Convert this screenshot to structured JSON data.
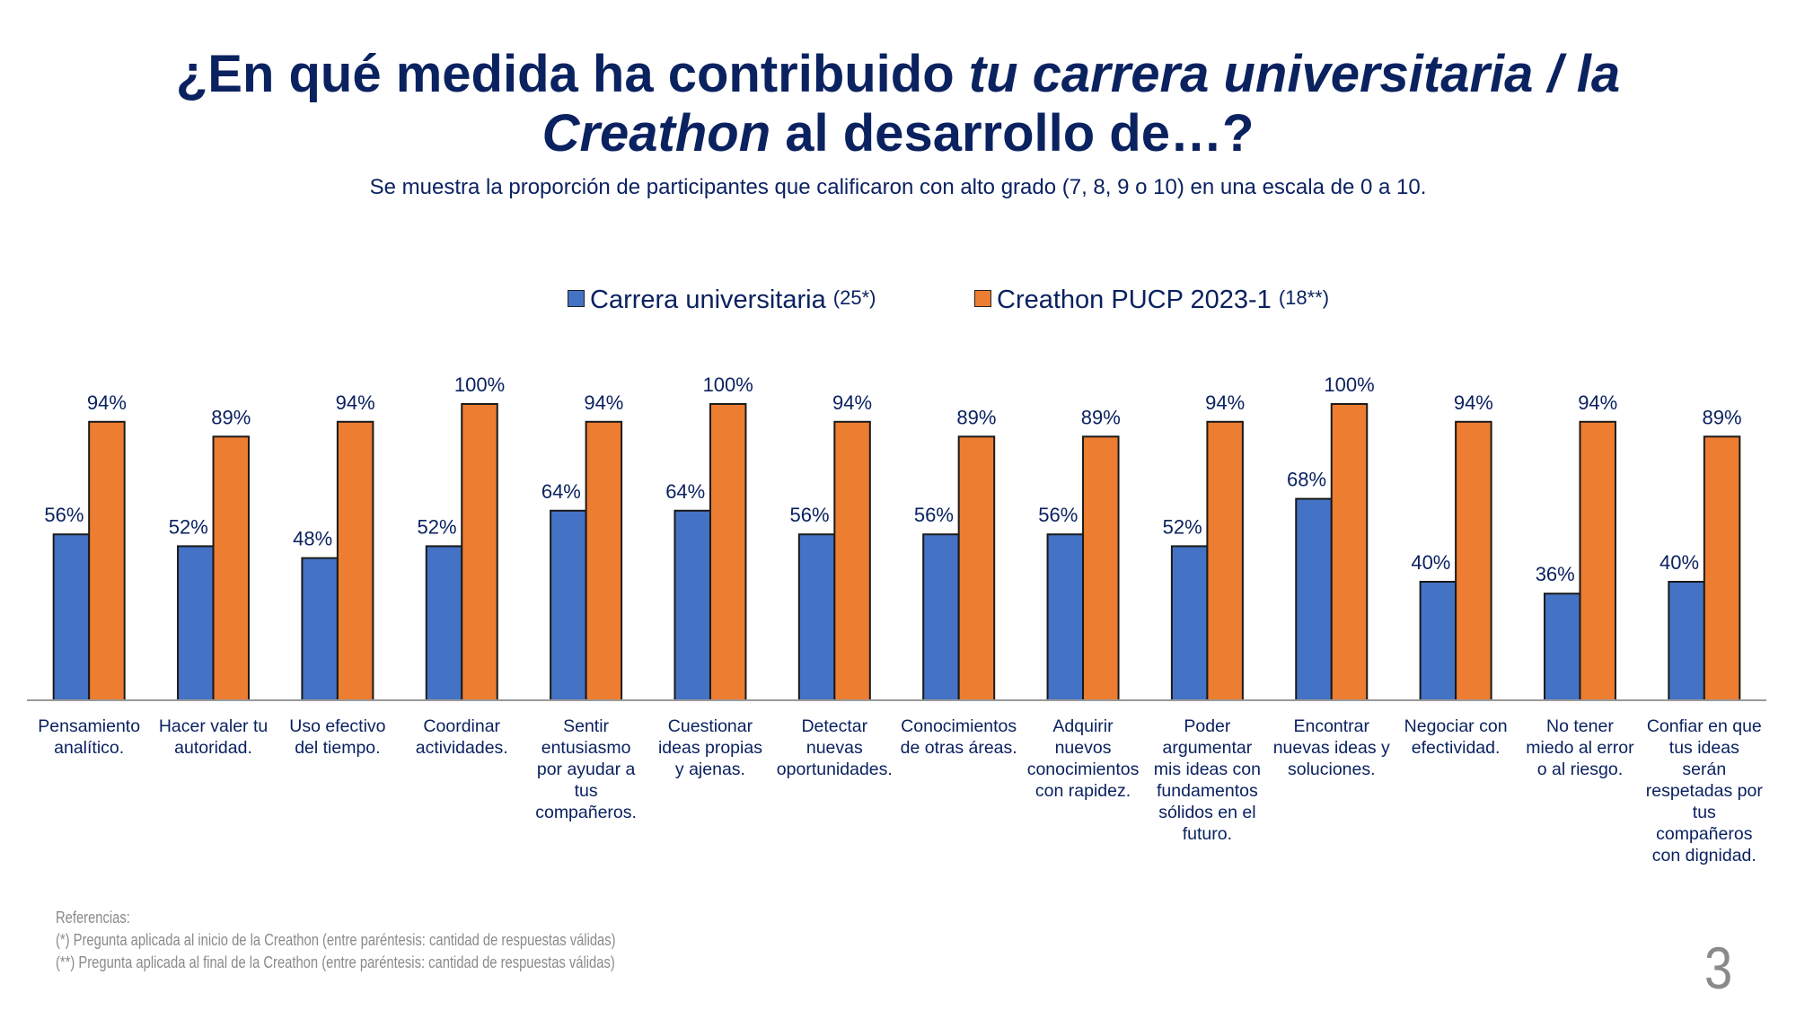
{
  "slide": {
    "title_parts": [
      {
        "text": "¿En qué medida ha contribuido ",
        "italic": false
      },
      {
        "text": "tu carrera universitaria / la",
        "italic": true
      },
      {
        "text": "\n",
        "italic": false
      },
      {
        "text": "Creathon",
        "italic": true
      },
      {
        "text": " al desarrollo de…?",
        "italic": false
      }
    ],
    "subtitle": "Se muestra la proporción de participantes que calificaron con alto grado (7, 8, 9 o 10) en una escala de 0 a 10.",
    "references": {
      "heading": "Referencias:",
      "lines": [
        "(*) Pregunta aplicada al inicio de la Creathon (entre paréntesis: cantidad de respuestas válidas)",
        "(**) Pregunta aplicada al final de la Creathon (entre paréntesis: cantidad de respuestas válidas)"
      ]
    },
    "page_number": "3"
  },
  "legend": [
    {
      "label": "Carrera universitaria",
      "n": "(25*)",
      "color": "#4472c4"
    },
    {
      "label": "Creathon PUCP 2023-1",
      "n": "(18**)",
      "color": "#ed7d31"
    }
  ],
  "chart_data": {
    "type": "bar",
    "title": "¿En qué medida ha contribuido tu carrera universitaria / la Creathon al desarrollo de…?",
    "xlabel": "",
    "ylabel": "",
    "ylim": [
      0,
      100
    ],
    "grid": false,
    "legend_position": "top",
    "value_format": "percent",
    "categories": [
      [
        "Pensamiento",
        "analítico."
      ],
      [
        "Hacer valer tu",
        "autoridad."
      ],
      [
        "Uso efectivo",
        "del tiempo."
      ],
      [
        "Coordinar",
        "actividades."
      ],
      [
        "Sentir",
        "entusiasmo",
        "por ayudar a",
        "tus",
        "compañeros."
      ],
      [
        "Cuestionar",
        "ideas propias",
        "y ajenas."
      ],
      [
        "Detectar",
        "nuevas",
        "oportunidades."
      ],
      [
        "Conocimientos",
        "de otras áreas."
      ],
      [
        "Adquirir",
        "nuevos",
        "conocimientos",
        "con rapidez."
      ],
      [
        "Poder",
        "argumentar",
        "mis ideas con",
        "fundamentos",
        "sólidos en el",
        "futuro."
      ],
      [
        "Encontrar",
        "nuevas ideas y",
        "soluciones."
      ],
      [
        "Negociar con",
        "efectividad."
      ],
      [
        "No tener",
        "miedo al error",
        "o al riesgo."
      ],
      [
        "Confiar en que",
        "tus ideas",
        "serán",
        "respetadas por",
        "tus",
        "compañeros",
        "con dignidad."
      ]
    ],
    "series": [
      {
        "name": "Carrera universitaria (25*)",
        "color": "#4472c4",
        "values": [
          56,
          52,
          48,
          52,
          64,
          64,
          56,
          56,
          56,
          52,
          68,
          40,
          36,
          40
        ]
      },
      {
        "name": "Creathon PUCP 2023-1 (18**)",
        "color": "#ed7d31",
        "values": [
          94,
          89,
          94,
          100,
          94,
          100,
          94,
          89,
          89,
          94,
          100,
          94,
          94,
          89
        ]
      }
    ]
  }
}
